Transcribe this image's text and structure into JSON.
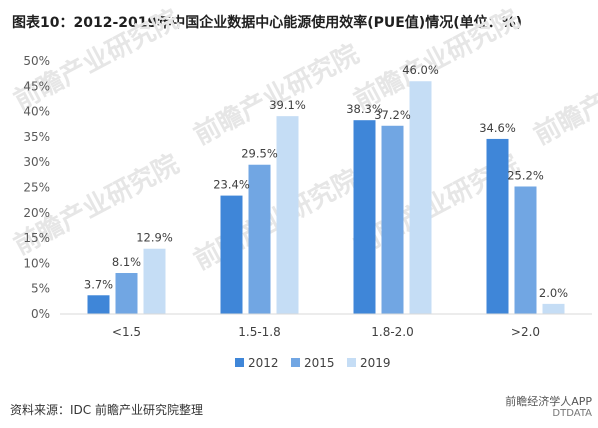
{
  "title": "图表10：2012-2019年中国企业数据中心能源使用效率(PUE值)情况(单位：%)",
  "source": "资料来源：IDC 前瞻产业研究院整理",
  "footer_right": "前瞻经济学人APP",
  "footer_badge": "DTDATA",
  "watermark": "前瞻产业研究院",
  "colors": {
    "2012": "#3f86d8",
    "2015": "#71a6e3",
    "2019": "#c5ddf5",
    "grid": "#d9d9d9"
  },
  "chart_data": {
    "type": "bar",
    "categories": [
      "<1.5",
      "1.5-1.8",
      "1.8-2.0",
      ">2.0"
    ],
    "series": [
      {
        "name": "2012",
        "values": [
          3.7,
          23.4,
          38.3,
          34.6
        ]
      },
      {
        "name": "2015",
        "values": [
          8.1,
          29.5,
          37.2,
          25.2
        ]
      },
      {
        "name": "2019",
        "values": [
          12.9,
          39.1,
          46.0,
          2.0
        ]
      }
    ],
    "value_labels": [
      [
        "3.7%",
        "23.4%",
        "38.3%",
        "34.6%"
      ],
      [
        "8.1%",
        "29.5%",
        "37.2%",
        "25.2%"
      ],
      [
        "12.9%",
        "39.1%",
        "46.0%",
        "2.0%"
      ]
    ],
    "yticks": [
      "0%",
      "5%",
      "10%",
      "15%",
      "20%",
      "25%",
      "30%",
      "35%",
      "40%",
      "45%",
      "50%"
    ],
    "ylim": [
      0,
      50
    ],
    "grid": false,
    "legend_position": "bottom"
  }
}
